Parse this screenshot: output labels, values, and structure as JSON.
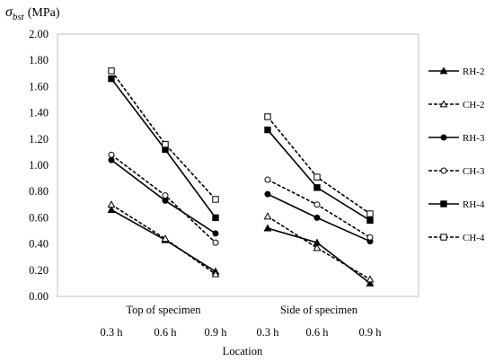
{
  "chart_data": {
    "type": "line",
    "ylabel_symbol": "σ",
    "ylabel_subscript": "bst",
    "ylabel_unit": "(MPa)",
    "xlabel": "Location",
    "ylim": [
      0,
      2.0
    ],
    "yticks": [
      "0.00",
      "0.20",
      "0.40",
      "0.60",
      "0.80",
      "1.00",
      "1.20",
      "1.40",
      "1.60",
      "1.80",
      "2.00"
    ],
    "grid": "horizontal-none",
    "groups": [
      "Top of specimen",
      "Side of specimen"
    ],
    "x": [
      "0.3 h",
      "0.6 h",
      "0.9 h",
      "0.3 h",
      "0.6 h",
      "0.9 h"
    ],
    "legend_position": "right",
    "series": [
      {
        "name": "RH-2",
        "marker": "triangle",
        "filled": true,
        "dashed": false,
        "values": [
          0.66,
          0.43,
          0.19,
          0.52,
          0.41,
          0.1
        ]
      },
      {
        "name": "CH-2",
        "marker": "triangle",
        "filled": false,
        "dashed": true,
        "values": [
          0.7,
          0.44,
          0.17,
          0.61,
          0.37,
          0.13
        ]
      },
      {
        "name": "RH-3",
        "marker": "circle",
        "filled": true,
        "dashed": false,
        "values": [
          1.04,
          0.73,
          0.48,
          0.78,
          0.6,
          0.42
        ]
      },
      {
        "name": "CH-3",
        "marker": "circle",
        "filled": false,
        "dashed": true,
        "values": [
          1.08,
          0.77,
          0.41,
          0.89,
          0.7,
          0.45
        ]
      },
      {
        "name": "RH-4",
        "marker": "square",
        "filled": true,
        "dashed": false,
        "values": [
          1.66,
          1.12,
          0.6,
          1.27,
          0.83,
          0.58
        ]
      },
      {
        "name": "CH-4",
        "marker": "square",
        "filled": false,
        "dashed": true,
        "values": [
          1.72,
          1.16,
          0.74,
          1.37,
          0.91,
          0.63
        ]
      }
    ]
  }
}
